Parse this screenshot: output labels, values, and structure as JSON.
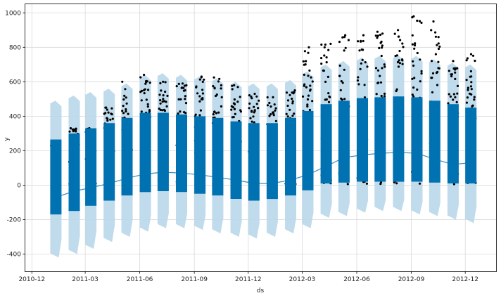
{
  "chart_data": {
    "type": "scatter",
    "title": "",
    "xlabel": "ds",
    "ylabel": "y",
    "ylim": [
      -500,
      1050
    ],
    "xlim": [
      "2010-11-20",
      "2013-01-22"
    ],
    "x_ticks": [
      "2010-12",
      "2011-03",
      "2011-06",
      "2011-09",
      "2011-12",
      "2012-03",
      "2012-06",
      "2012-09",
      "2012-12"
    ],
    "y_ticks": [
      -400,
      -200,
      0,
      200,
      400,
      600,
      800,
      1000
    ],
    "grid": true,
    "colors": {
      "points": "#000000",
      "forecast": "#0072B2",
      "uncertainty": "#B9D7EA",
      "grid": "#D9D9D9"
    },
    "months": [
      {
        "month": "2011-01",
        "start": "2011-01-01",
        "end": "2011-01-19",
        "max_y": 230,
        "yhat_low": -170,
        "yhat_high": 265,
        "lower": -420,
        "upper": 490,
        "trend": -70
      },
      {
        "month": "2011-02",
        "start": "2011-02-01",
        "end": "2011-02-19",
        "max_y": 330,
        "yhat_low": -150,
        "yhat_high": 300,
        "lower": -400,
        "upper": 520,
        "trend": -35
      },
      {
        "month": "2011-03",
        "start": "2011-03-01",
        "end": "2011-03-19",
        "max_y": 330,
        "yhat_low": -120,
        "yhat_high": 330,
        "lower": -370,
        "upper": 540,
        "trend": -15
      },
      {
        "month": "2011-04",
        "start": "2011-04-01",
        "end": "2011-04-19",
        "max_y": 450,
        "yhat_low": -90,
        "yhat_high": 360,
        "lower": -330,
        "upper": 560,
        "trend": 10
      },
      {
        "month": "2011-05",
        "start": "2011-05-01",
        "end": "2011-05-19",
        "max_y": 600,
        "yhat_low": -60,
        "yhat_high": 390,
        "lower": -300,
        "upper": 590,
        "trend": 40
      },
      {
        "month": "2011-06",
        "start": "2011-06-01",
        "end": "2011-06-19",
        "max_y": 640,
        "yhat_low": -40,
        "yhat_high": 420,
        "lower": -270,
        "upper": 640,
        "trend": 65
      },
      {
        "month": "2011-07",
        "start": "2011-07-01",
        "end": "2011-07-19",
        "max_y": 600,
        "yhat_low": -35,
        "yhat_high": 420,
        "lower": -250,
        "upper": 650,
        "trend": 75
      },
      {
        "month": "2011-08",
        "start": "2011-08-01",
        "end": "2011-08-19",
        "max_y": 590,
        "yhat_low": -40,
        "yhat_high": 410,
        "lower": -250,
        "upper": 640,
        "trend": 70
      },
      {
        "month": "2011-09",
        "start": "2011-09-01",
        "end": "2011-09-19",
        "max_y": 630,
        "yhat_low": -50,
        "yhat_high": 400,
        "lower": -260,
        "upper": 630,
        "trend": 60
      },
      {
        "month": "2011-10",
        "start": "2011-10-01",
        "end": "2011-10-19",
        "max_y": 625,
        "yhat_low": -60,
        "yhat_high": 390,
        "lower": -280,
        "upper": 620,
        "trend": 45
      },
      {
        "month": "2011-11",
        "start": "2011-11-01",
        "end": "2011-11-19",
        "max_y": 580,
        "yhat_low": -80,
        "yhat_high": 370,
        "lower": -300,
        "upper": 600,
        "trend": 30
      },
      {
        "month": "2011-12",
        "start": "2011-12-01",
        "end": "2011-12-19",
        "max_y": 530,
        "yhat_low": -90,
        "yhat_high": 360,
        "lower": -310,
        "upper": 590,
        "trend": 10
      },
      {
        "month": "2012-01",
        "start": "2012-01-01",
        "end": "2012-01-19",
        "max_y": 510,
        "yhat_low": -80,
        "yhat_high": 360,
        "lower": -300,
        "upper": 590,
        "trend": 10
      },
      {
        "month": "2012-02",
        "start": "2012-02-01",
        "end": "2012-02-19",
        "max_y": 550,
        "yhat_low": -60,
        "yhat_high": 390,
        "lower": -280,
        "upper": 610,
        "trend": 30
      },
      {
        "month": "2012-03",
        "start": "2012-03-01",
        "end": "2012-03-19",
        "max_y": 800,
        "yhat_low": -30,
        "yhat_high": 430,
        "lower": -250,
        "upper": 660,
        "trend": 60
      },
      {
        "month": "2012-04",
        "start": "2012-04-01",
        "end": "2012-04-19",
        "max_y": 820,
        "yhat_low": 10,
        "yhat_high": 470,
        "lower": -190,
        "upper": 700,
        "trend": 110
      },
      {
        "month": "2012-05",
        "start": "2012-05-01",
        "end": "2012-05-19",
        "max_y": 870,
        "yhat_low": 15,
        "yhat_high": 490,
        "lower": -180,
        "upper": 720,
        "trend": 160
      },
      {
        "month": "2012-06",
        "start": "2012-06-01",
        "end": "2012-06-19",
        "max_y": 870,
        "yhat_low": 20,
        "yhat_high": 505,
        "lower": -160,
        "upper": 740,
        "trend": 175
      },
      {
        "month": "2012-07",
        "start": "2012-07-01",
        "end": "2012-07-19",
        "max_y": 890,
        "yhat_low": 20,
        "yhat_high": 510,
        "lower": -150,
        "upper": 750,
        "trend": 185
      },
      {
        "month": "2012-08",
        "start": "2012-08-01",
        "end": "2012-08-19",
        "max_y": 900,
        "yhat_low": 20,
        "yhat_high": 515,
        "lower": -150,
        "upper": 755,
        "trend": 190
      },
      {
        "month": "2012-09",
        "start": "2012-09-01",
        "end": "2012-09-19",
        "max_y": 980,
        "yhat_low": 20,
        "yhat_high": 510,
        "lower": -170,
        "upper": 750,
        "trend": 185
      },
      {
        "month": "2012-10",
        "start": "2012-10-01",
        "end": "2012-10-19",
        "max_y": 950,
        "yhat_low": 15,
        "yhat_high": 490,
        "lower": -180,
        "upper": 730,
        "trend": 150
      },
      {
        "month": "2012-11",
        "start": "2012-11-01",
        "end": "2012-11-19",
        "max_y": 720,
        "yhat_low": 10,
        "yhat_high": 470,
        "lower": -200,
        "upper": 710,
        "trend": 120
      },
      {
        "month": "2012-12",
        "start": "2012-12-01",
        "end": "2012-12-19",
        "max_y": 760,
        "yhat_low": 10,
        "yhat_high": 450,
        "lower": -220,
        "upper": 700,
        "trend": 130
      }
    ]
  }
}
